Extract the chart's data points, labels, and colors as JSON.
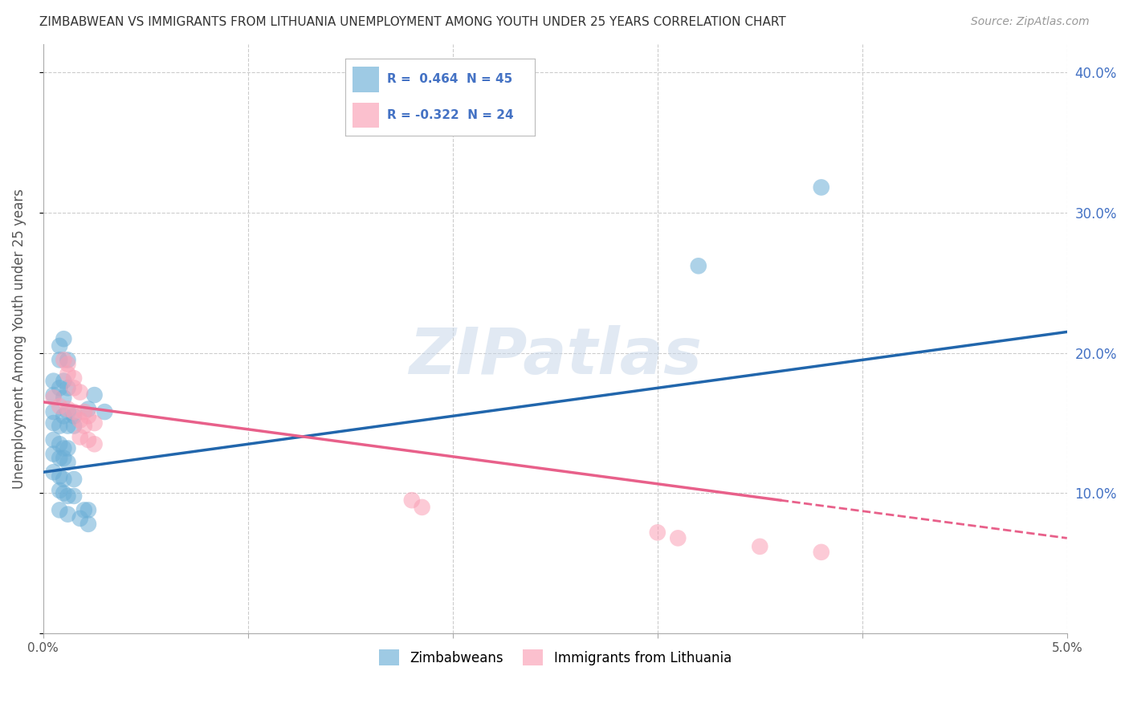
{
  "title": "ZIMBABWEAN VS IMMIGRANTS FROM LITHUANIA UNEMPLOYMENT AMONG YOUTH UNDER 25 YEARS CORRELATION CHART",
  "source": "Source: ZipAtlas.com",
  "ylabel": "Unemployment Among Youth under 25 years",
  "xlim": [
    0.0,
    0.05
  ],
  "ylim": [
    0.0,
    0.42
  ],
  "legend_label1": "Zimbabweans",
  "legend_label2": "Immigrants from Lithuania",
  "blue_color": "#6baed6",
  "pink_color": "#fa9fb5",
  "blue_line_color": "#2166ac",
  "pink_line_color": "#e8608a",
  "blue_scatter": [
    [
      0.0008,
      0.205
    ],
    [
      0.001,
      0.21
    ],
    [
      0.0008,
      0.195
    ],
    [
      0.0012,
      0.195
    ],
    [
      0.0005,
      0.18
    ],
    [
      0.001,
      0.18
    ],
    [
      0.0008,
      0.175
    ],
    [
      0.0012,
      0.175
    ],
    [
      0.0005,
      0.17
    ],
    [
      0.001,
      0.168
    ],
    [
      0.0005,
      0.158
    ],
    [
      0.001,
      0.155
    ],
    [
      0.0012,
      0.158
    ],
    [
      0.0015,
      0.155
    ],
    [
      0.0005,
      0.15
    ],
    [
      0.0008,
      0.148
    ],
    [
      0.0012,
      0.148
    ],
    [
      0.0015,
      0.148
    ],
    [
      0.0005,
      0.138
    ],
    [
      0.0008,
      0.135
    ],
    [
      0.001,
      0.132
    ],
    [
      0.0012,
      0.132
    ],
    [
      0.0005,
      0.128
    ],
    [
      0.0008,
      0.125
    ],
    [
      0.001,
      0.125
    ],
    [
      0.0012,
      0.122
    ],
    [
      0.0005,
      0.115
    ],
    [
      0.0008,
      0.112
    ],
    [
      0.001,
      0.11
    ],
    [
      0.0015,
      0.11
    ],
    [
      0.0008,
      0.102
    ],
    [
      0.001,
      0.1
    ],
    [
      0.0012,
      0.098
    ],
    [
      0.0015,
      0.098
    ],
    [
      0.0008,
      0.088
    ],
    [
      0.0012,
      0.085
    ],
    [
      0.0018,
      0.082
    ],
    [
      0.0022,
      0.078
    ],
    [
      0.002,
      0.088
    ],
    [
      0.0022,
      0.088
    ],
    [
      0.0022,
      0.16
    ],
    [
      0.0025,
      0.17
    ],
    [
      0.003,
      0.158
    ],
    [
      0.038,
      0.318
    ],
    [
      0.032,
      0.262
    ]
  ],
  "pink_scatter": [
    [
      0.0005,
      0.168
    ],
    [
      0.0008,
      0.162
    ],
    [
      0.001,
      0.195
    ],
    [
      0.0012,
      0.192
    ],
    [
      0.0012,
      0.185
    ],
    [
      0.0015,
      0.182
    ],
    [
      0.0015,
      0.175
    ],
    [
      0.0018,
      0.172
    ],
    [
      0.0012,
      0.16
    ],
    [
      0.0015,
      0.158
    ],
    [
      0.0018,
      0.152
    ],
    [
      0.002,
      0.148
    ],
    [
      0.002,
      0.158
    ],
    [
      0.0022,
      0.155
    ],
    [
      0.0025,
      0.15
    ],
    [
      0.0018,
      0.14
    ],
    [
      0.0022,
      0.138
    ],
    [
      0.0025,
      0.135
    ],
    [
      0.018,
      0.095
    ],
    [
      0.0185,
      0.09
    ],
    [
      0.03,
      0.072
    ],
    [
      0.031,
      0.068
    ],
    [
      0.035,
      0.062
    ],
    [
      0.038,
      0.058
    ]
  ],
  "blue_trendline": [
    [
      0.0,
      0.115
    ],
    [
      0.05,
      0.215
    ]
  ],
  "pink_trendline_solid": [
    [
      0.0,
      0.165
    ],
    [
      0.036,
      0.095
    ]
  ],
  "pink_trendline_dashed": [
    [
      0.036,
      0.095
    ],
    [
      0.05,
      0.068
    ]
  ],
  "watermark": "ZIPatlas",
  "background_color": "#ffffff",
  "grid_color": "#cccccc"
}
